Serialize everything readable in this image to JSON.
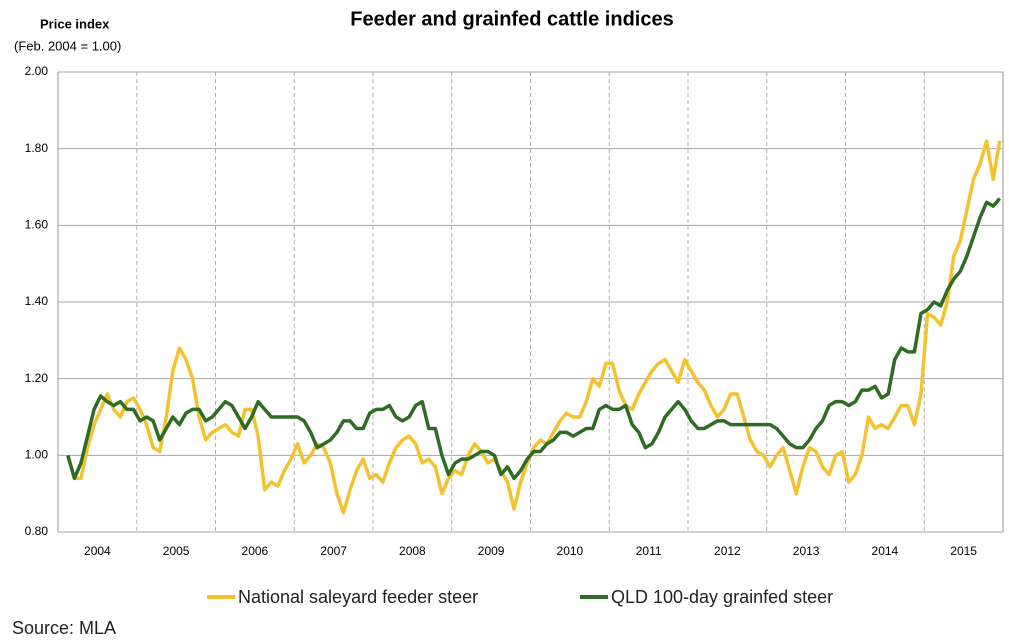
{
  "chart_data": {
    "type": "line",
    "title": "Feeder and grainfed cattle indices",
    "y_axis_label": "Price index",
    "y_axis_note": "(Feb. 2004 = 1.00)",
    "source": "Source: MLA",
    "categories": [
      null,
      null,
      null,
      null,
      null,
      null,
      "2004",
      null,
      null,
      null,
      null,
      null,
      null,
      null,
      null,
      null,
      null,
      null,
      "2005",
      null,
      null,
      null,
      null,
      null,
      null,
      null,
      null,
      null,
      null,
      null,
      "2006",
      null,
      null,
      null,
      null,
      null,
      null,
      null,
      null,
      null,
      null,
      null,
      "2007",
      null,
      null,
      null,
      null,
      null,
      null,
      null,
      null,
      null,
      null,
      null,
      "2008",
      null,
      null,
      null,
      null,
      null,
      null,
      null,
      null,
      null,
      null,
      null,
      "2009",
      null,
      null,
      null,
      null,
      null,
      null,
      null,
      null,
      null,
      null,
      null,
      "2010",
      null,
      null,
      null,
      null,
      null,
      null,
      null,
      null,
      null,
      null,
      null,
      "2011",
      null,
      null,
      null,
      null,
      null,
      null,
      null,
      null,
      null,
      null,
      null,
      "2012",
      null,
      null,
      null,
      null,
      null,
      null,
      null,
      null,
      null,
      null,
      null,
      "2013",
      null,
      null,
      null,
      null,
      null,
      null,
      null,
      null,
      null,
      null,
      null,
      "2014",
      null,
      null,
      null,
      null,
      null,
      null,
      null,
      null,
      null,
      null,
      null,
      "2015",
      null,
      null,
      null,
      null,
      null
    ],
    "series": [
      {
        "name": "National saleyard feeder steer",
        "color": "#f2c230",
        "values": [
          null,
          1.0,
          0.94,
          0.94,
          1.02,
          1.08,
          1.12,
          1.16,
          1.12,
          1.1,
          1.14,
          1.15,
          1.12,
          1.08,
          1.02,
          1.01,
          1.1,
          1.22,
          1.28,
          1.25,
          1.2,
          1.1,
          1.04,
          1.06,
          1.07,
          1.08,
          1.06,
          1.05,
          1.12,
          1.12,
          1.05,
          0.91,
          0.93,
          0.92,
          0.96,
          0.99,
          1.03,
          0.98,
          1.0,
          1.03,
          1.02,
          0.98,
          0.9,
          0.85,
          0.91,
          0.96,
          0.99,
          0.94,
          0.95,
          0.93,
          0.98,
          1.02,
          1.04,
          1.05,
          1.03,
          0.98,
          0.99,
          0.97,
          0.9,
          0.94,
          0.96,
          0.95,
          1.0,
          1.03,
          1.01,
          0.98,
          0.99,
          0.96,
          0.93,
          0.86,
          0.93,
          0.98,
          1.02,
          1.04,
          1.03,
          1.06,
          1.09,
          1.11,
          1.1,
          1.1,
          1.14,
          1.2,
          1.18,
          1.24,
          1.24,
          1.17,
          1.13,
          1.12,
          1.16,
          1.19,
          1.22,
          1.24,
          1.25,
          1.22,
          1.19,
          1.25,
          1.22,
          1.19,
          1.17,
          1.13,
          1.1,
          1.12,
          1.16,
          1.16,
          1.1,
          1.04,
          1.01,
          1.0,
          0.97,
          1.0,
          1.02,
          0.96,
          0.9,
          0.97,
          1.02,
          1.01,
          0.97,
          0.95,
          1.0,
          1.01,
          0.93,
          0.95,
          1.0,
          1.1,
          1.07,
          1.08,
          1.07,
          1.1,
          1.13,
          1.13,
          1.08,
          1.16,
          1.37,
          1.36,
          1.34,
          1.4,
          1.52,
          1.56,
          1.64,
          1.72,
          1.76,
          1.82,
          1.72,
          1.82
        ]
      },
      {
        "name": "QLD 100-day grainfed steer",
        "color": "#2e6b23",
        "values": [
          null,
          1.0,
          0.94,
          0.98,
          1.05,
          1.12,
          1.155,
          1.14,
          1.13,
          1.14,
          1.12,
          1.12,
          1.09,
          1.1,
          1.09,
          1.04,
          1.07,
          1.1,
          1.08,
          1.11,
          1.12,
          1.12,
          1.09,
          1.1,
          1.12,
          1.14,
          1.13,
          1.1,
          1.07,
          1.1,
          1.14,
          1.12,
          1.1,
          1.1,
          1.1,
          1.1,
          1.1,
          1.09,
          1.06,
          1.02,
          1.03,
          1.04,
          1.06,
          1.09,
          1.09,
          1.07,
          1.07,
          1.11,
          1.12,
          1.12,
          1.13,
          1.1,
          1.09,
          1.1,
          1.13,
          1.14,
          1.07,
          1.07,
          1.0,
          0.95,
          0.98,
          0.99,
          0.99,
          1.0,
          1.01,
          1.01,
          1.0,
          0.95,
          0.97,
          0.94,
          0.96,
          0.99,
          1.01,
          1.01,
          1.03,
          1.04,
          1.06,
          1.06,
          1.05,
          1.06,
          1.07,
          1.07,
          1.12,
          1.13,
          1.12,
          1.12,
          1.13,
          1.08,
          1.06,
          1.02,
          1.03,
          1.06,
          1.1,
          1.12,
          1.14,
          1.12,
          1.09,
          1.07,
          1.07,
          1.08,
          1.09,
          1.09,
          1.08,
          1.08,
          1.08,
          1.08,
          1.08,
          1.08,
          1.08,
          1.07,
          1.05,
          1.03,
          1.02,
          1.02,
          1.04,
          1.07,
          1.09,
          1.13,
          1.14,
          1.14,
          1.13,
          1.14,
          1.17,
          1.17,
          1.18,
          1.15,
          1.16,
          1.25,
          1.28,
          1.27,
          1.27,
          1.37,
          1.38,
          1.4,
          1.39,
          1.43,
          1.46,
          1.48,
          1.52,
          1.57,
          1.62,
          1.66,
          1.65,
          1.67
        ]
      }
    ],
    "ylim": [
      0.8,
      2.0
    ],
    "yticks": [
      {
        "value": 0.8,
        "label": "0.80"
      },
      {
        "value": 1.0,
        "label": "1.00"
      },
      {
        "value": 1.2,
        "label": "1.20"
      },
      {
        "value": 1.4,
        "label": "1.40"
      },
      {
        "value": 1.6,
        "label": "1.60"
      },
      {
        "value": 1.8,
        "label": "1.80"
      },
      {
        "value": 2.0,
        "label": "2.00"
      }
    ],
    "grid": true,
    "legend": "bottom"
  }
}
